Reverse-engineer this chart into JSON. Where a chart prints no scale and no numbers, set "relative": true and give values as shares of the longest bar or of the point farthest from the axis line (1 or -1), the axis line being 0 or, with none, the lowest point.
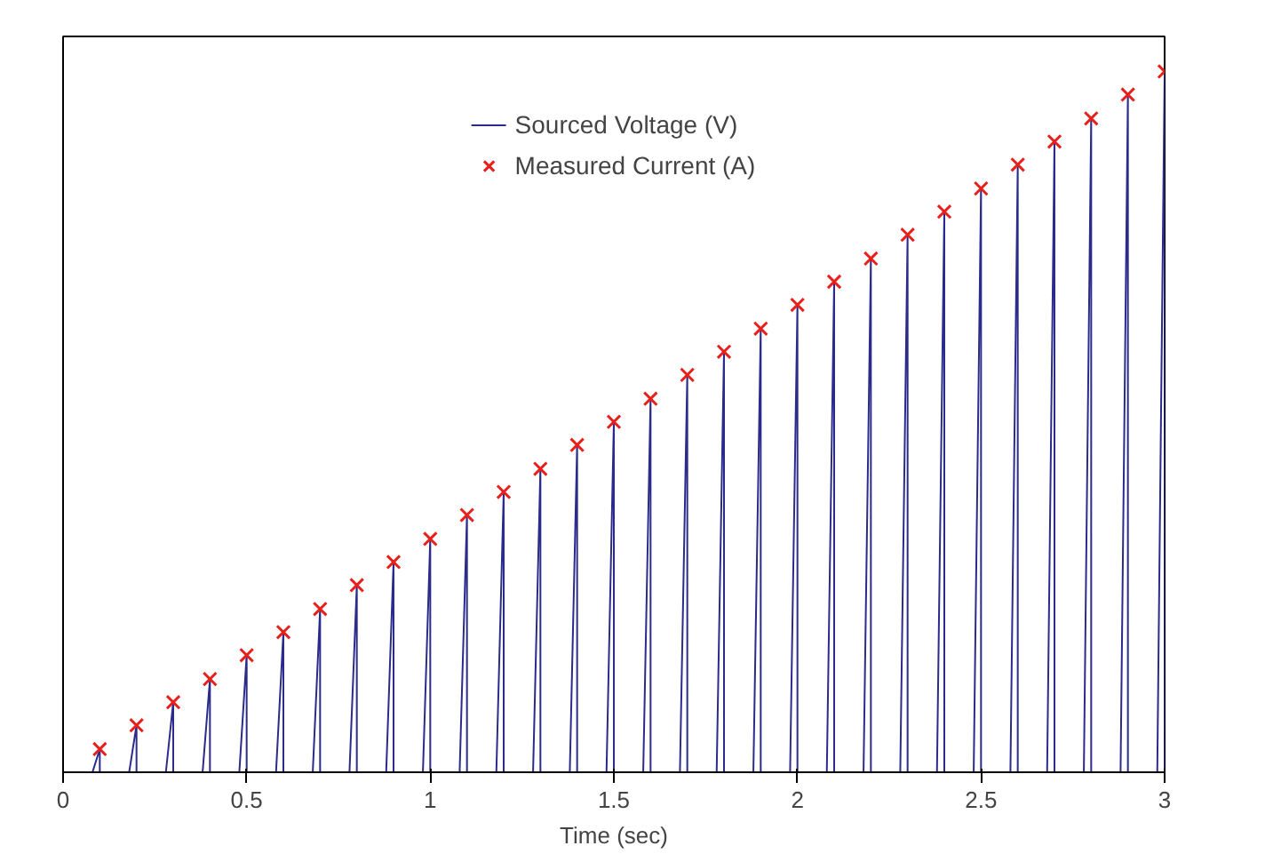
{
  "chart_data": {
    "type": "line",
    "relative": true,
    "xlabel": "Time (sec)",
    "xlim": [
      0,
      3
    ],
    "xticks": [
      0,
      0.5,
      1,
      1.5,
      2,
      2.5,
      3
    ],
    "grid": false,
    "legend": "top",
    "line_style": "solid",
    "series": [
      {
        "name": "Sourced Voltage (V)",
        "color": "#2b2b8c",
        "marker": "none",
        "x": [
          0,
          0.08,
          0.1,
          0.1,
          0.18,
          0.2,
          0.2,
          0.28,
          0.3,
          0.3,
          0.38,
          0.4,
          0.4,
          0.48,
          0.5,
          0.5,
          0.58,
          0.6,
          0.6,
          0.68,
          0.7,
          0.7,
          0.78,
          0.8,
          0.8,
          0.88,
          0.9,
          0.9,
          0.98,
          1.0,
          1.0,
          1.08,
          1.1,
          1.1,
          1.18,
          1.2,
          1.2,
          1.28,
          1.3,
          1.3,
          1.38,
          1.4,
          1.4,
          1.48,
          1.5,
          1.5,
          1.58,
          1.6,
          1.6,
          1.68,
          1.7,
          1.7,
          1.78,
          1.8,
          1.8,
          1.88,
          1.9,
          1.9,
          1.98,
          2.0,
          2.0,
          2.08,
          2.1,
          2.1,
          2.18,
          2.2,
          2.2,
          2.28,
          2.3,
          2.3,
          2.38,
          2.4,
          2.4,
          2.48,
          2.5,
          2.5,
          2.58,
          2.6,
          2.6,
          2.68,
          2.7,
          2.7,
          2.78,
          2.8,
          2.8,
          2.88,
          2.9,
          2.9,
          2.98,
          3.0,
          3.0
        ],
        "values": [
          0,
          0,
          0.033,
          0,
          0,
          0.067,
          0,
          0,
          0.1,
          0,
          0,
          0.133,
          0,
          0,
          0.167,
          0,
          0,
          0.2,
          0,
          0,
          0.233,
          0,
          0,
          0.267,
          0,
          0,
          0.3,
          0,
          0,
          0.333,
          0,
          0,
          0.367,
          0,
          0,
          0.4,
          0,
          0,
          0.433,
          0,
          0,
          0.467,
          0,
          0,
          0.5,
          0,
          0,
          0.533,
          0,
          0,
          0.567,
          0,
          0,
          0.6,
          0,
          0,
          0.633,
          0,
          0,
          0.667,
          0,
          0,
          0.7,
          0,
          0,
          0.733,
          0,
          0,
          0.767,
          0,
          0,
          0.8,
          0,
          0,
          0.833,
          0,
          0,
          0.867,
          0,
          0,
          0.9,
          0,
          0,
          0.933,
          0,
          0,
          0.967,
          0,
          0,
          1,
          0
        ]
      },
      {
        "name": "Measured Current (A)",
        "type": "scatter",
        "color": "#e8201c",
        "marker": "cross",
        "x": [
          0.1,
          0.2,
          0.3,
          0.4,
          0.5,
          0.6,
          0.7,
          0.8,
          0.9,
          1.0,
          1.1,
          1.2,
          1.3,
          1.4,
          1.5,
          1.6,
          1.7,
          1.8,
          1.9,
          2.0,
          2.1,
          2.2,
          2.3,
          2.4,
          2.5,
          2.6,
          2.7,
          2.8,
          2.9,
          3.0
        ],
        "values": [
          0.033,
          0.067,
          0.1,
          0.133,
          0.167,
          0.2,
          0.233,
          0.267,
          0.3,
          0.333,
          0.367,
          0.4,
          0.433,
          0.467,
          0.5,
          0.533,
          0.567,
          0.6,
          0.633,
          0.667,
          0.7,
          0.733,
          0.767,
          0.8,
          0.833,
          0.867,
          0.9,
          0.933,
          0.967,
          1
        ]
      }
    ]
  }
}
